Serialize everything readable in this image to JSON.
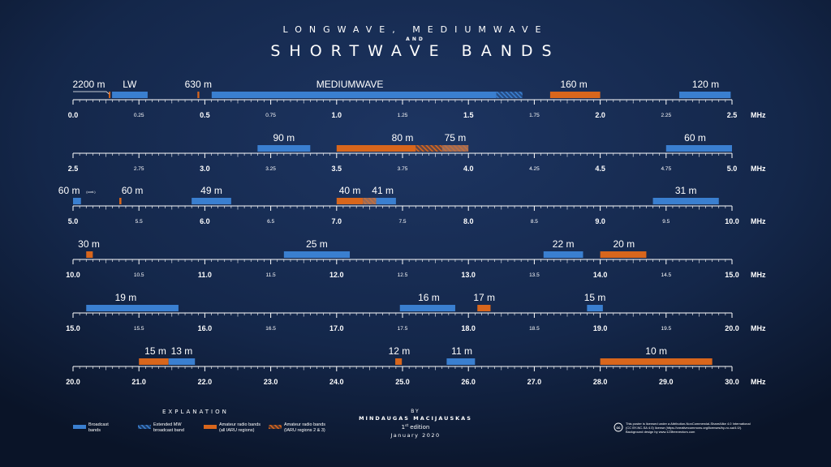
{
  "title": {
    "line1": "LONGWAVE, MEDIUMWAVE",
    "line2": "AND",
    "line3": "SHORTWAVE BANDS"
  },
  "unit": "MHz",
  "colors": {
    "broadcast": "#3a7fd0",
    "amateur": "#d8661c",
    "background": "#0f1e38"
  },
  "chart_data": {
    "type": "bar",
    "rows": [
      {
        "range": [
          0,
          2.5
        ],
        "major_ticks": [
          {
            "v": 0,
            "label": "0.0"
          },
          {
            "v": 0.5,
            "label": "0.5"
          },
          {
            "v": 1.0,
            "label": "1.0"
          },
          {
            "v": 1.5,
            "label": "1.5"
          },
          {
            "v": 2.0,
            "label": "2.0"
          },
          {
            "v": 2.5,
            "label": "2.5"
          }
        ],
        "minor_ticks": [
          {
            "v": 0.25,
            "label": "0.25"
          },
          {
            "v": 0.75,
            "label": "0.75"
          },
          {
            "v": 1.25,
            "label": "1.25"
          },
          {
            "v": 1.75,
            "label": "1.75"
          },
          {
            "v": 2.25,
            "label": "2.25"
          }
        ],
        "bars": [
          {
            "start": 0.1357,
            "end": 0.1378,
            "type": "amateur"
          },
          {
            "start": 0.148,
            "end": 0.283,
            "type": "broadcast"
          },
          {
            "start": 0.472,
            "end": 0.479,
            "type": "amateur"
          },
          {
            "start": 0.526,
            "end": 1.606,
            "type": "broadcast"
          },
          {
            "start": 1.606,
            "end": 1.705,
            "type": "extended"
          },
          {
            "start": 1.81,
            "end": 2.0,
            "type": "amateur"
          },
          {
            "start": 2.3,
            "end": 2.495,
            "type": "broadcast"
          }
        ],
        "labels": [
          {
            "text": "2200 m",
            "at": 0.06
          },
          {
            "text": "LW",
            "at": 0.215
          },
          {
            "text": "630 m",
            "at": 0.475
          },
          {
            "text": "MEDIUMWAVE",
            "at": 1.05
          },
          {
            "text": "160 m",
            "at": 1.9
          },
          {
            "text": "120 m",
            "at": 2.4
          }
        ]
      },
      {
        "range": [
          2.5,
          5.0
        ],
        "major_ticks": [
          {
            "v": 2.5,
            "label": "2.5"
          },
          {
            "v": 3.0,
            "label": "3.0"
          },
          {
            "v": 3.5,
            "label": "3.5"
          },
          {
            "v": 4.0,
            "label": "4.0"
          },
          {
            "v": 4.5,
            "label": "4.5"
          },
          {
            "v": 5.0,
            "label": "5.0"
          }
        ],
        "minor_ticks": [
          {
            "v": 2.75,
            "label": "2.75"
          },
          {
            "v": 3.25,
            "label": "3.25"
          },
          {
            "v": 3.75,
            "label": "3.75"
          },
          {
            "v": 4.25,
            "label": "4.25"
          },
          {
            "v": 4.75,
            "label": "4.75"
          }
        ],
        "bars": [
          {
            "start": 3.2,
            "end": 3.4,
            "type": "broadcast"
          },
          {
            "start": 3.5,
            "end": 3.8,
            "type": "amateur"
          },
          {
            "start": 3.8,
            "end": 3.9,
            "type": "amateur23"
          },
          {
            "start": 3.9,
            "end": 4.0,
            "type": "mixed"
          },
          {
            "start": 4.75,
            "end": 5.0,
            "type": "broadcast"
          }
        ],
        "labels": [
          {
            "text": "90 m",
            "at": 3.3
          },
          {
            "text": "80 m",
            "at": 3.75
          },
          {
            "text": "75 m",
            "at": 3.95
          },
          {
            "text": "60 m",
            "at": 4.86
          }
        ]
      },
      {
        "range": [
          5.0,
          10.0
        ],
        "major_ticks": [
          {
            "v": 5,
            "label": "5.0"
          },
          {
            "v": 6,
            "label": "6.0"
          },
          {
            "v": 7,
            "label": "7.0"
          },
          {
            "v": 8,
            "label": "8.0"
          },
          {
            "v": 9,
            "label": "9.0"
          },
          {
            "v": 10,
            "label": "10.0"
          }
        ],
        "minor_ticks": [
          {
            "v": 5.5,
            "label": "5.5"
          },
          {
            "v": 6.5,
            "label": "6.5"
          },
          {
            "v": 7.5,
            "label": "7.5"
          },
          {
            "v": 8.5,
            "label": "8.5"
          },
          {
            "v": 9.5,
            "label": "9.5"
          }
        ],
        "bars": [
          {
            "start": 5.0,
            "end": 5.06,
            "type": "broadcast"
          },
          {
            "start": 5.351,
            "end": 5.367,
            "type": "amateur"
          },
          {
            "start": 5.9,
            "end": 6.2,
            "type": "broadcast"
          },
          {
            "start": 7.0,
            "end": 7.2,
            "type": "amateur"
          },
          {
            "start": 7.2,
            "end": 7.3,
            "type": "mixed"
          },
          {
            "start": 7.3,
            "end": 7.45,
            "type": "broadcast"
          },
          {
            "start": 9.4,
            "end": 9.9,
            "type": "broadcast"
          }
        ],
        "labels": [
          {
            "text": "60 m",
            "at": 4.97
          },
          {
            "text": "60 m",
            "at": 5.45
          },
          {
            "text": "49 m",
            "at": 6.05
          },
          {
            "text": "40 m",
            "at": 7.1
          },
          {
            "text": "41 m",
            "at": 7.35
          },
          {
            "text": "31 m",
            "at": 9.65
          }
        ],
        "note": {
          "text": "(cont.)",
          "at": 5.1
        }
      },
      {
        "range": [
          10.0,
          15.0
        ],
        "major_ticks": [
          {
            "v": 10,
            "label": "10.0"
          },
          {
            "v": 11,
            "label": "11.0"
          },
          {
            "v": 12,
            "label": "12.0"
          },
          {
            "v": 13,
            "label": "13.0"
          },
          {
            "v": 14,
            "label": "14.0"
          },
          {
            "v": 15,
            "label": "15.0"
          }
        ],
        "minor_ticks": [
          {
            "v": 10.5,
            "label": "10.5"
          },
          {
            "v": 11.5,
            "label": "11.5"
          },
          {
            "v": 12.5,
            "label": "12.5"
          },
          {
            "v": 13.5,
            "label": "13.5"
          },
          {
            "v": 14.5,
            "label": "14.5"
          }
        ],
        "bars": [
          {
            "start": 10.1,
            "end": 10.15,
            "type": "amateur"
          },
          {
            "start": 11.6,
            "end": 12.1,
            "type": "broadcast"
          },
          {
            "start": 13.57,
            "end": 13.87,
            "type": "broadcast"
          },
          {
            "start": 14.0,
            "end": 14.35,
            "type": "amateur"
          }
        ],
        "labels": [
          {
            "text": "30 m",
            "at": 10.12
          },
          {
            "text": "25 m",
            "at": 11.85
          },
          {
            "text": "22 m",
            "at": 13.72
          },
          {
            "text": "20 m",
            "at": 14.18
          }
        ]
      },
      {
        "range": [
          15.0,
          20.0
        ],
        "major_ticks": [
          {
            "v": 15,
            "label": "15.0"
          },
          {
            "v": 16,
            "label": "16.0"
          },
          {
            "v": 17,
            "label": "17.0"
          },
          {
            "v": 18,
            "label": "18.0"
          },
          {
            "v": 19,
            "label": "19.0"
          },
          {
            "v": 20,
            "label": "20.0"
          }
        ],
        "minor_ticks": [
          {
            "v": 15.5,
            "label": "15.5"
          },
          {
            "v": 16.5,
            "label": "16.5"
          },
          {
            "v": 17.5,
            "label": "17.5"
          },
          {
            "v": 18.5,
            "label": "18.5"
          },
          {
            "v": 19.5,
            "label": "19.5"
          }
        ],
        "bars": [
          {
            "start": 15.1,
            "end": 15.8,
            "type": "broadcast"
          },
          {
            "start": 17.48,
            "end": 17.9,
            "type": "broadcast"
          },
          {
            "start": 18.068,
            "end": 18.168,
            "type": "amateur"
          },
          {
            "start": 18.9,
            "end": 19.02,
            "type": "broadcast"
          }
        ],
        "labels": [
          {
            "text": "19 m",
            "at": 15.4
          },
          {
            "text": "16 m",
            "at": 17.7
          },
          {
            "text": "17 m",
            "at": 18.12
          },
          {
            "text": "15 m",
            "at": 18.96
          }
        ]
      },
      {
        "range": [
          20.0,
          30.0
        ],
        "major_ticks": [
          {
            "v": 20,
            "label": "20.0"
          },
          {
            "v": 21,
            "label": "21.0"
          },
          {
            "v": 22,
            "label": "22.0"
          },
          {
            "v": 23,
            "label": "23.0"
          },
          {
            "v": 24,
            "label": "24.0"
          },
          {
            "v": 25,
            "label": "25.0"
          },
          {
            "v": 26,
            "label": "26.0"
          },
          {
            "v": 27,
            "label": "27.0"
          },
          {
            "v": 28,
            "label": "28.0"
          },
          {
            "v": 29,
            "label": "29.0"
          },
          {
            "v": 30,
            "label": "30.0"
          }
        ],
        "minor_ticks": [],
        "bars": [
          {
            "start": 21.0,
            "end": 21.45,
            "type": "amateur"
          },
          {
            "start": 21.45,
            "end": 21.85,
            "type": "broadcast"
          },
          {
            "start": 24.89,
            "end": 24.99,
            "type": "amateur"
          },
          {
            "start": 25.67,
            "end": 26.1,
            "type": "broadcast"
          },
          {
            "start": 28.0,
            "end": 29.7,
            "type": "amateur"
          }
        ],
        "labels": [
          {
            "text": "15 m",
            "at": 21.25
          },
          {
            "text": "13 m",
            "at": 21.65
          },
          {
            "text": "12 m",
            "at": 24.95
          },
          {
            "text": "11 m",
            "at": 25.9
          },
          {
            "text": "10 m",
            "at": 28.85
          }
        ]
      }
    ]
  },
  "explanation": {
    "heading": "EXPLANATION",
    "items": [
      {
        "type": "broadcast",
        "line1": "Broadcast",
        "line2": "bands"
      },
      {
        "type": "extended",
        "line1": "Extended MW",
        "line2": "broadcast band"
      },
      {
        "type": "amateur",
        "line1": "Amateur radio bands",
        "line2": "(all IARU regions)"
      },
      {
        "type": "amateur23",
        "line1": "Amateur radio bands",
        "line2": "(IARU regions 2 & 3)"
      }
    ]
  },
  "credits": {
    "by": "BY",
    "author": "MINDAUGAS MACIJAUSKAS",
    "edition_number": "1",
    "edition_suffix": "st",
    "edition_word": "edition",
    "date": "January 2020"
  },
  "license": {
    "badge": "cc",
    "line1": "This poster is licensed under a Attribution-NonCommercial-ShareAlike 4.0 International",
    "line2": "(CC BY-NC-SA 4.0) license (https://creativecommons.org/licenses/by-nc-sa/4.0/).",
    "line3": "Background design by www.123freevectors.com"
  }
}
